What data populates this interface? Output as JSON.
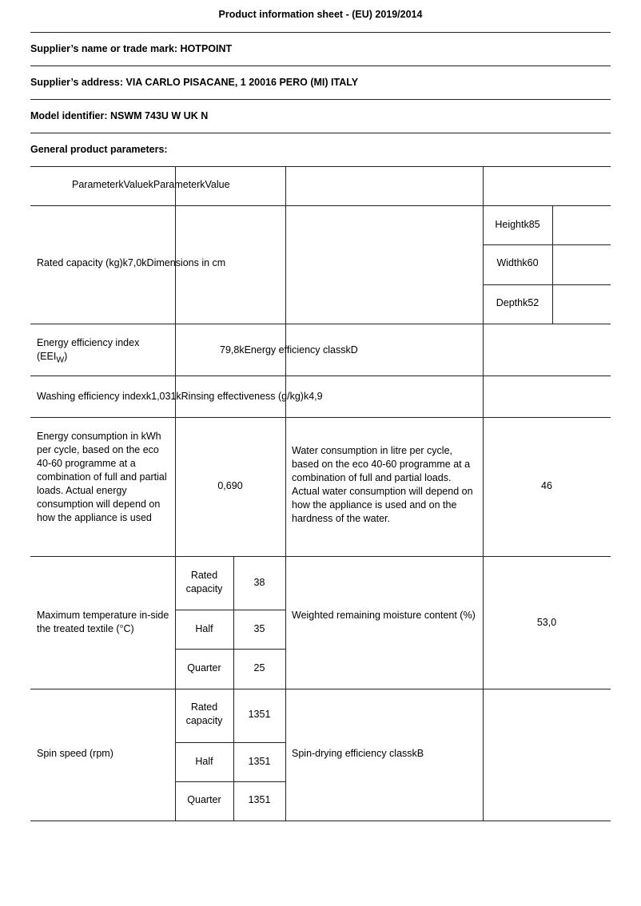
{
  "title": "Product information sheet - (EU) 2019/2014",
  "supplier_name": "Supplier’s name or trade mark: HOTPOINT",
  "supplier_address": "Supplier’s address: VIA CARLO PISACANE, 1 20016 PERO (MI) ITALY",
  "model_identifier": "Model identifier: NSWM 743U W UK N",
  "general_heading": "General product parameters:",
  "table": {
    "header": "ParameterkValuekParameterkValue",
    "rated_capacity": "Rated capacity (kg)k7,0kDimensions in cm",
    "height": "Heightk85",
    "width": "Widthk60",
    "depth": "Depthk52",
    "eei_label": "Energy efficiency index (EEI",
    "eei_sub": "W",
    "eei_close": ")",
    "eei_value": "79,8kEnergy efficiency classkD",
    "washing": "Washing efficiency indexk1,031kRinsing effectiveness (g/kg)k4,9",
    "energy_label": "Energy consumption in kWh per cycle, based on the eco 40-60 programme at a combination of full and partial loads. Actual energy consumption will depend on how the appliance is used",
    "energy_value": "0,690",
    "water_label": "Water consumption in litre per cycle, based on the eco 40-60 programme at a combination of full and partial loads. Actual water consumption will depend on how the appliance is used and on the hardness of the water.",
    "water_value": "46",
    "temp_label": "Maximum temperature in-side the treated textile (°C)",
    "temp_rows": [
      {
        "load": "Rated capacity",
        "value": "38"
      },
      {
        "load": "Half",
        "value": "35"
      },
      {
        "load": "Quarter",
        "value": "25"
      }
    ],
    "moisture_label": "Weighted remaining moisture content (%)",
    "moisture_value": "53,0",
    "spin_label": "Spin speed (rpm)",
    "spin_rows": [
      {
        "load": "Rated capacity",
        "value": "1351"
      },
      {
        "load": "Half",
        "value": "1351"
      },
      {
        "load": "Quarter",
        "value": "1351"
      }
    ],
    "spin_class": "Spin-drying efficiency classkB"
  }
}
